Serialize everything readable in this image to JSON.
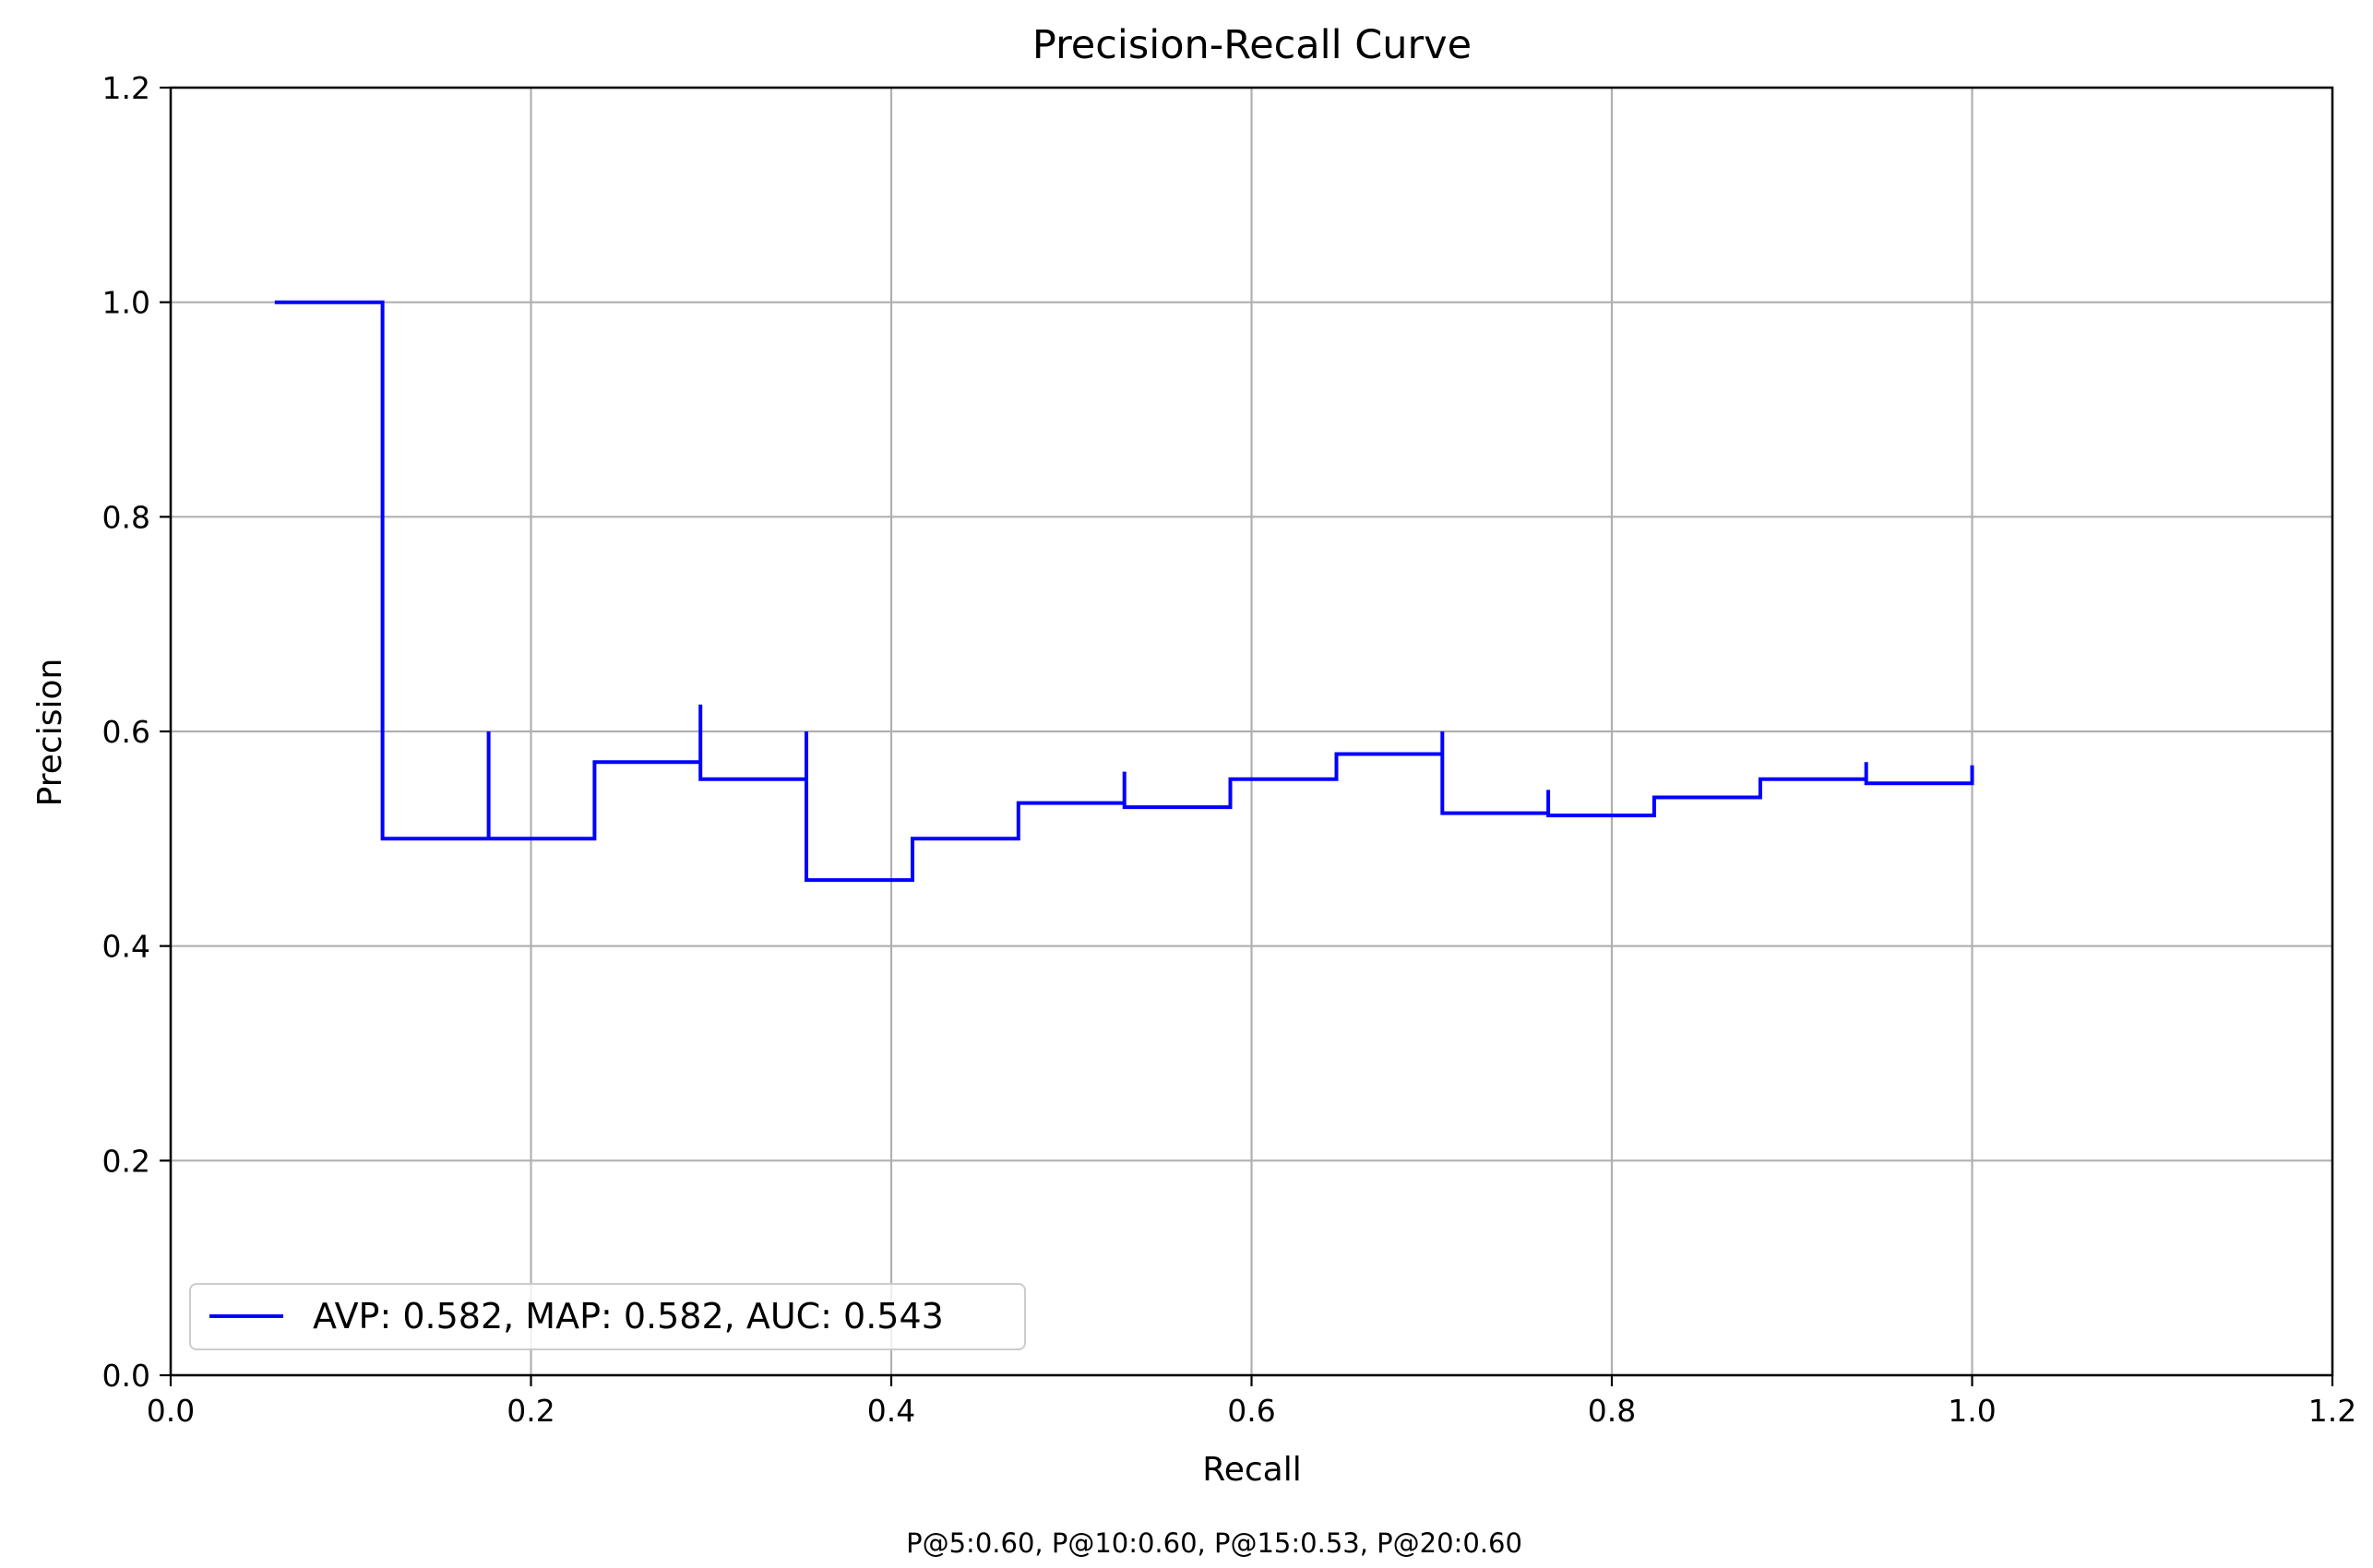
{
  "chart_data": {
    "type": "line",
    "title": "Precision-Recall Curve",
    "xlabel": "Recall",
    "ylabel": "Precision",
    "footer": "P@5:0.60, P@10:0.60, P@15:0.53, P@20:0.60",
    "xlim": [
      0.0,
      1.2
    ],
    "ylim": [
      0.0,
      1.2
    ],
    "xticks": [
      0.0,
      0.2,
      0.4,
      0.6,
      0.8,
      1.0,
      1.2
    ],
    "yticks": [
      0.0,
      0.2,
      0.4,
      0.6,
      0.8,
      1.0,
      1.2
    ],
    "xtick_labels": [
      "0.0",
      "0.2",
      "0.4",
      "0.6",
      "0.8",
      "1.0",
      "1.2"
    ],
    "ytick_labels": [
      "0.0",
      "0.2",
      "0.4",
      "0.6",
      "0.8",
      "1.0",
      "1.2"
    ],
    "grid": true,
    "legend_position": "lower-left",
    "series": [
      {
        "name": "AVP: 0.582, MAP: 0.582, AUC: 0.543",
        "color": "#0000ff",
        "x": [
          0.0588,
          0.1176,
          0.1176,
          0.1765,
          0.1765,
          0.1765,
          0.2353,
          0.2353,
          0.2941,
          0.2941,
          0.2941,
          0.3529,
          0.3529,
          0.3529,
          0.4118,
          0.4118,
          0.4706,
          0.4706,
          0.5294,
          0.5294,
          0.5294,
          0.5882,
          0.5882,
          0.6471,
          0.6471,
          0.7059,
          0.7059,
          0.7059,
          0.7647,
          0.7647,
          0.7647,
          0.8235,
          0.8235,
          0.8824,
          0.8824,
          0.9412,
          0.9412,
          0.9412,
          1.0,
          1.0
        ],
        "y": [
          1.0,
          1.0,
          0.5,
          0.5,
          0.6,
          0.5,
          0.5,
          0.5714,
          0.5714,
          0.625,
          0.5556,
          0.5556,
          0.6,
          0.4615,
          0.4615,
          0.5,
          0.5,
          0.5333,
          0.5333,
          0.5625,
          0.5294,
          0.5294,
          0.5556,
          0.5556,
          0.5789,
          0.5789,
          0.6,
          0.5238,
          0.5238,
          0.5455,
          0.5217,
          0.5217,
          0.5385,
          0.5385,
          0.5556,
          0.5556,
          0.5714,
          0.5517,
          0.5517,
          0.5667
        ]
      }
    ]
  }
}
